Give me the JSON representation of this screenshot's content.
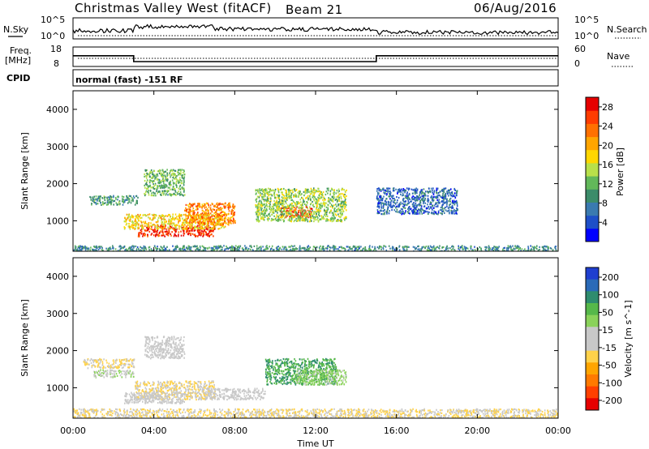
{
  "header": {
    "radar_title": "Christmas Valley West (fitACF)",
    "beam": "Beam 21",
    "date": "06/Aug/2016"
  },
  "panels": {
    "nsky_label": "N.Sky",
    "nsky_ticks": [
      "10^5",
      "10^0"
    ],
    "nsearch_label": "N.Search",
    "nsearch_ticks": [
      "10^5",
      "10^0"
    ],
    "freq_label": "Freq.",
    "freq_unit": "[MHz]",
    "freq_ticks": [
      "18",
      "8"
    ],
    "nave_label": "Nave",
    "nave_ticks": [
      "60",
      "0"
    ],
    "cpid_label": "CPID",
    "cpid_text": "normal (fast) -151 RF"
  },
  "power_colorbar": {
    "label": "Power [dB]",
    "ticks": [
      "28",
      "24",
      "20",
      "16",
      "12",
      "8",
      "4"
    ],
    "colors": [
      "#0000ff",
      "#1e4fc8",
      "#3a7ab0",
      "#3c8c6a",
      "#62b85a",
      "#b8e04a",
      "#ffd700",
      "#ffa500",
      "#ff7000",
      "#ff3c00",
      "#e60000"
    ]
  },
  "velocity_colorbar": {
    "label": "Velocity [m s^-1]",
    "ticks": [
      "200",
      "100",
      "50",
      "15",
      "-15",
      "-50",
      "-100",
      "-200"
    ],
    "colors": [
      "#1f3fd0",
      "#2a6ab8",
      "#2e8c6e",
      "#56b84a",
      "#8ad25a",
      "#c8c8c8",
      "#c8c8c8",
      "#ffd24a",
      "#ffa500",
      "#ff7a00",
      "#ff4000",
      "#e60000"
    ]
  },
  "chart_data": {
    "type": "heatmap",
    "title": "Christmas Valley West (fitACF)",
    "xlabel": "Time UT",
    "ylabel": "Slant Range [km]",
    "x_ticks": [
      "00:00",
      "04:00",
      "08:00",
      "12:00",
      "16:00",
      "20:00",
      "00:00"
    ],
    "xlim_hours": [
      0,
      24
    ],
    "y_ticks": [
      1000,
      2000,
      3000,
      4000
    ],
    "ylim_km": [
      180,
      4500
    ],
    "grid": false,
    "freq_steps_mhz": [
      {
        "start_hour": 0.0,
        "end_hour": 3.0,
        "freq": 13.5
      },
      {
        "start_hour": 3.0,
        "end_hour": 15.0,
        "freq": 10.5
      },
      {
        "start_hour": 15.0,
        "end_hour": 24.0,
        "freq": 13.5
      }
    ],
    "power_regions": [
      {
        "t0": 3.2,
        "t1": 7.0,
        "r0": 600,
        "r1": 900,
        "power_db": 27
      },
      {
        "t0": 2.5,
        "t1": 7.5,
        "r0": 800,
        "r1": 1200,
        "power_db": 18
      },
      {
        "t0": 5.5,
        "t1": 8.0,
        "r0": 900,
        "r1": 1500,
        "power_db": 22
      },
      {
        "t0": 10.2,
        "t1": 11.8,
        "r0": 1100,
        "r1": 1400,
        "power_db": 26
      },
      {
        "t0": 9.0,
        "t1": 13.5,
        "r0": 1000,
        "r1": 1900,
        "power_db": 14
      },
      {
        "t0": 0.8,
        "t1": 3.2,
        "r0": 1450,
        "r1": 1700,
        "power_db": 10
      },
      {
        "t0": 3.5,
        "t1": 5.5,
        "r0": 1700,
        "r1": 2400,
        "power_db": 12
      },
      {
        "t0": 0.0,
        "t1": 24.0,
        "r0": 180,
        "r1": 350,
        "power_db": 9
      },
      {
        "t0": 15.0,
        "t1": 19.0,
        "r0": 1200,
        "r1": 1900,
        "power_db": 6
      }
    ],
    "velocity_regions": [
      {
        "t0": 0.5,
        "t1": 3.0,
        "r0": 1550,
        "r1": 1800,
        "velocity": -40
      },
      {
        "t0": 1.0,
        "t1": 3.0,
        "r0": 1300,
        "r1": 1500,
        "velocity": 40
      },
      {
        "t0": 3.0,
        "t1": 7.0,
        "r0": 700,
        "r1": 1200,
        "velocity": -40
      },
      {
        "t0": 2.5,
        "t1": 5.5,
        "r0": 600,
        "r1": 900,
        "velocity": 0
      },
      {
        "t0": 6.5,
        "t1": 9.5,
        "r0": 700,
        "r1": 1000,
        "velocity": 0
      },
      {
        "t0": 9.5,
        "t1": 13.0,
        "r0": 1100,
        "r1": 1800,
        "velocity": 120
      },
      {
        "t0": 11.0,
        "t1": 13.5,
        "r0": 1100,
        "r1": 1500,
        "velocity": 60
      },
      {
        "t0": 0.0,
        "t1": 24.0,
        "r0": 180,
        "r1": 450,
        "velocity": -40
      },
      {
        "t0": 3.5,
        "t1": 5.5,
        "r0": 1800,
        "r1": 2400,
        "velocity": 0
      }
    ]
  }
}
